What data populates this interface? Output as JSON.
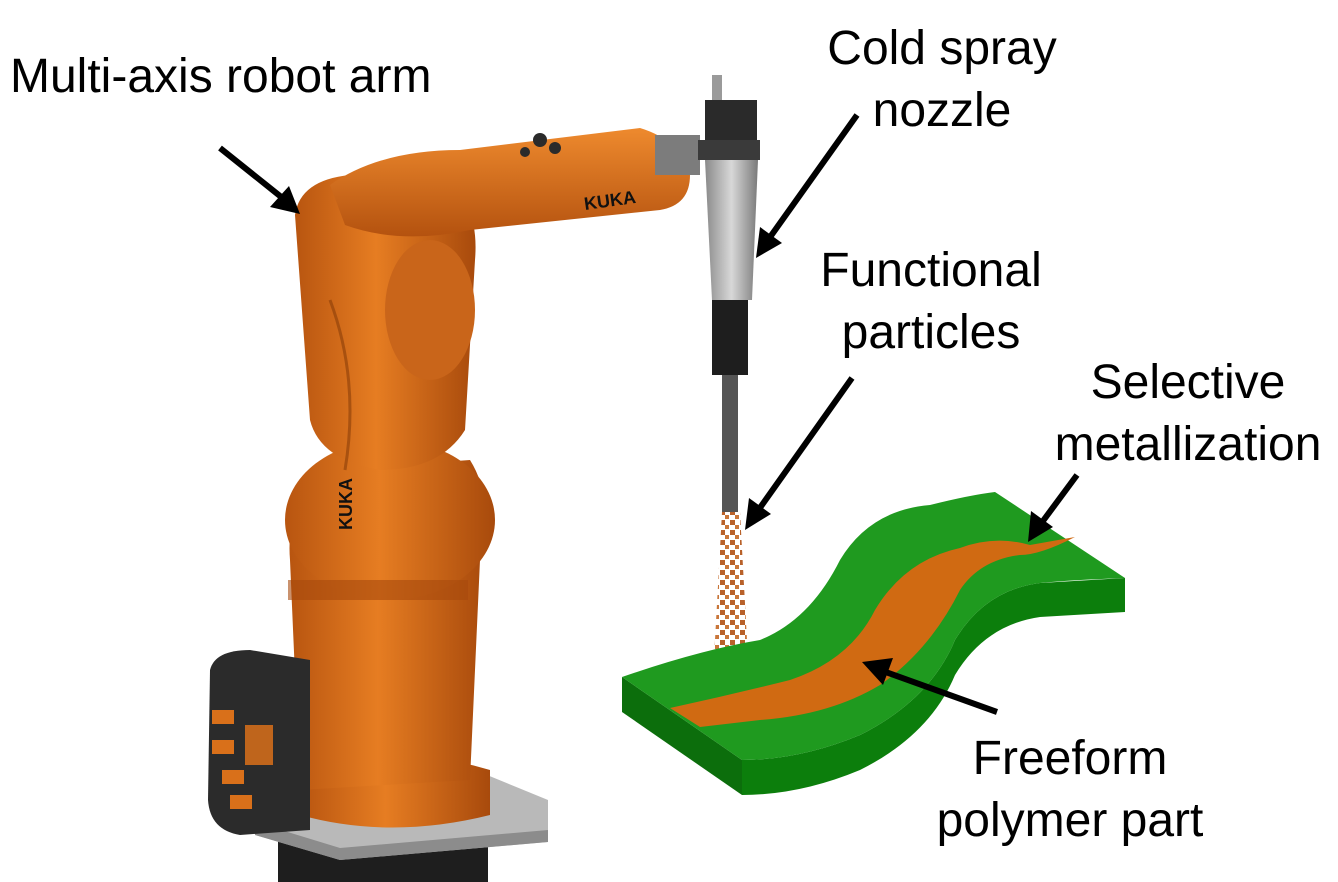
{
  "labels": {
    "robot_arm": [
      "Multi-axis robot arm"
    ],
    "nozzle": [
      "Cold spray",
      "nozzle"
    ],
    "particles": [
      "Functional",
      "particles"
    ],
    "metallization": [
      "Selective",
      "metallization"
    ],
    "part": [
      "Freeform",
      "polymer part"
    ]
  },
  "brand": "KUKA",
  "colors": {
    "robot_orange": "#d9701a",
    "robot_dark": "#2a2a2a",
    "part_green": "#1f9a1f",
    "part_green_dark": "#117a11",
    "metal_track": "#d06a12",
    "particle": "#b8612a"
  }
}
